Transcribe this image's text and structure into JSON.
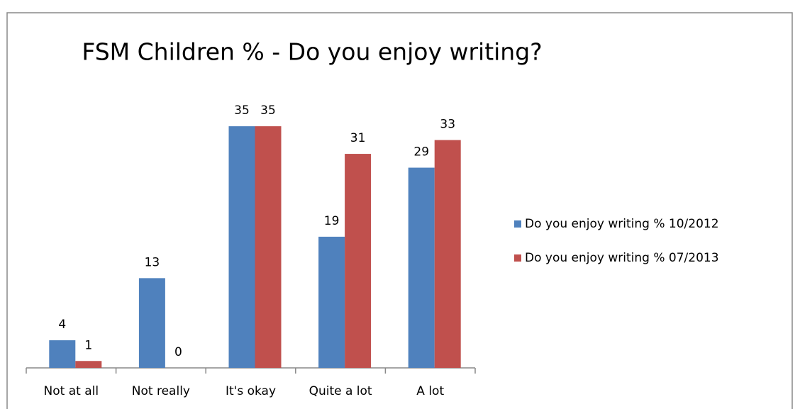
{
  "chart_data": {
    "type": "bar",
    "title": "FSM Children % - Do you enjoy writing?",
    "categories": [
      "Not at all",
      "Not really",
      "It's okay",
      "Quite a lot",
      "A lot"
    ],
    "series": [
      {
        "name": "Do you enjoy writing % 10/2012",
        "color": "#4f81bd",
        "values": [
          4,
          13,
          35,
          19,
          29
        ]
      },
      {
        "name": "Do you enjoy writing % 07/2013",
        "color": "#c0504d",
        "values": [
          1,
          0,
          35,
          31,
          33
        ]
      }
    ],
    "legend": "right"
  }
}
